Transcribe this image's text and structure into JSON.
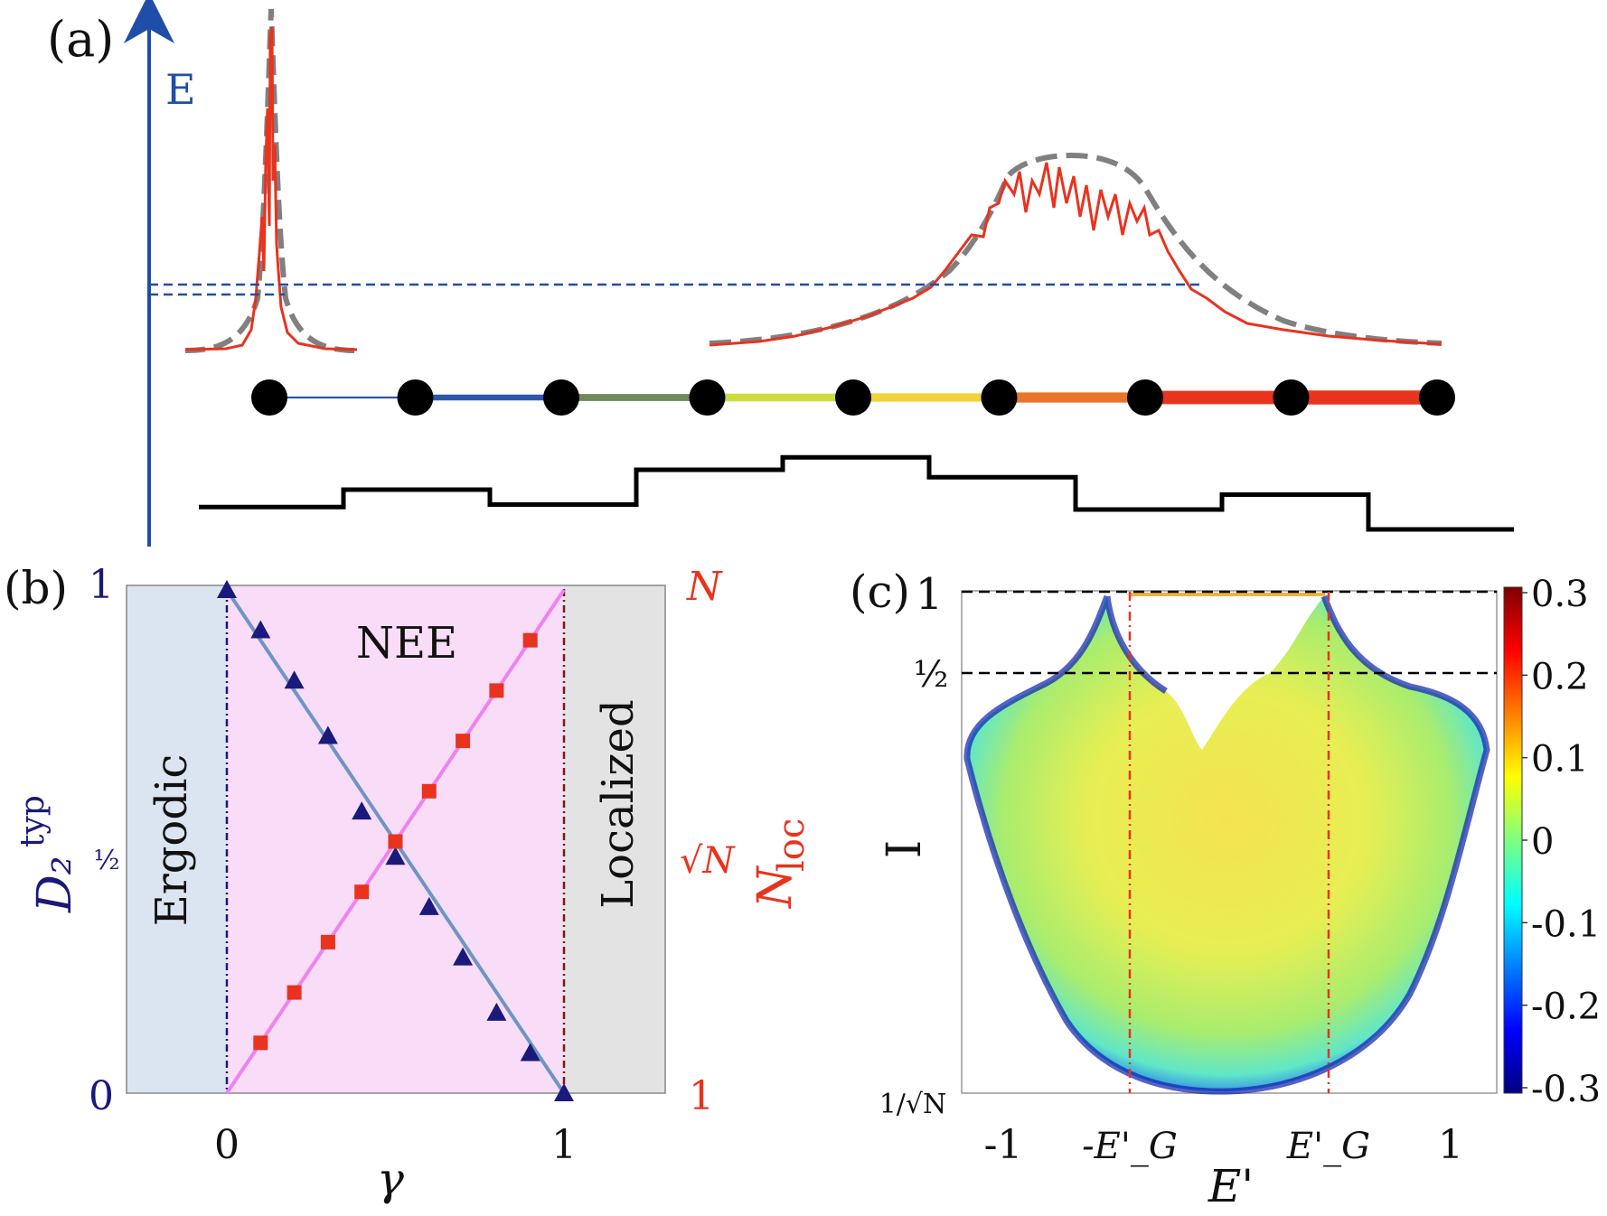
{
  "panel_a": {
    "label": "(a)",
    "axis_label": "E",
    "colors": {
      "axis": "#1f4ea8",
      "spectrum": "#e8331f",
      "envelope": "#808080",
      "step": "#000000"
    },
    "chain": {
      "sites": 9,
      "bond_colors": [
        "#2a58ad",
        "#2a58ad",
        "#6e8a5a",
        "#cbdc3c",
        "#f2d13a",
        "#e8752a",
        "#e8331f",
        "#e8331f"
      ],
      "bond_levels": [
        0.05,
        0.35,
        0.45,
        0.5,
        0.55,
        0.7,
        0.95,
        1.0
      ]
    },
    "step_profile": [
      0.25,
      0.6,
      0.3,
      1.0,
      1.25,
      0.85,
      0.2,
      0.5,
      -0.2
    ]
  },
  "panel_b": {
    "label": "(b)",
    "left_axis_ticks": [
      "1",
      "½",
      "0"
    ],
    "right_axis_ticks": [
      "N",
      "√N",
      "1"
    ],
    "x_ticks": [
      "0",
      "1"
    ],
    "xlabel": "γ",
    "ylabel_left": "D₂",
    "ylabel_left_sup": "typ",
    "ylabel_right": "N",
    "ylabel_right_sub": "loc",
    "region_ergodic": "Ergodic",
    "region_nee": "NEE",
    "region_localized": "Localized",
    "colors": {
      "ergodic": "#dbe5f1",
      "nee": "#f9dcf7",
      "localized": "#e3e3e3",
      "triangle": "#1a1a7a",
      "square": "#e8331f",
      "line_blue": "#6f95c4",
      "line_pink": "#ee82ee"
    }
  },
  "panel_c": {
    "label": "(c)",
    "y_ticks": [
      "1",
      "½",
      "1/√N"
    ],
    "x_ticks": [
      "-1",
      "-E'_G",
      "E'_G",
      "1"
    ],
    "xlabel": "E'",
    "ylabel": "I",
    "colorbar_ticks": [
      "0.3",
      "0.2",
      "0.1",
      "0",
      "-0.1",
      "-0.2",
      "-0.3"
    ]
  },
  "chart_data": [
    {
      "type": "scatter",
      "title": "",
      "xlabel": "γ",
      "ylabel": "D2 typ",
      "xlim": [
        -0.3,
        1.3
      ],
      "ylim": [
        0,
        1
      ],
      "series": [
        {
          "name": "D2 typ (triangles)",
          "x": [
            0,
            0.1,
            0.2,
            0.3,
            0.4,
            0.5,
            0.6,
            0.7,
            0.8,
            0.9,
            1.0
          ],
          "y": [
            1.0,
            0.92,
            0.82,
            0.71,
            0.56,
            0.47,
            0.37,
            0.27,
            0.16,
            0.08,
            0.0
          ]
        },
        {
          "name": "N_loc (squares)",
          "x": [
            0.1,
            0.2,
            0.3,
            0.4,
            0.5,
            0.6,
            0.7,
            0.8,
            0.9
          ],
          "y": [
            0.1,
            0.2,
            0.3,
            0.4,
            0.5,
            0.6,
            0.7,
            0.8,
            0.9
          ]
        }
      ]
    },
    {
      "type": "heatmap",
      "title": "",
      "xlabel": "E'",
      "ylabel": "I",
      "xlim": [
        -1.2,
        1.2
      ],
      "colorbar_range": [
        -0.3,
        0.3
      ]
    }
  ]
}
